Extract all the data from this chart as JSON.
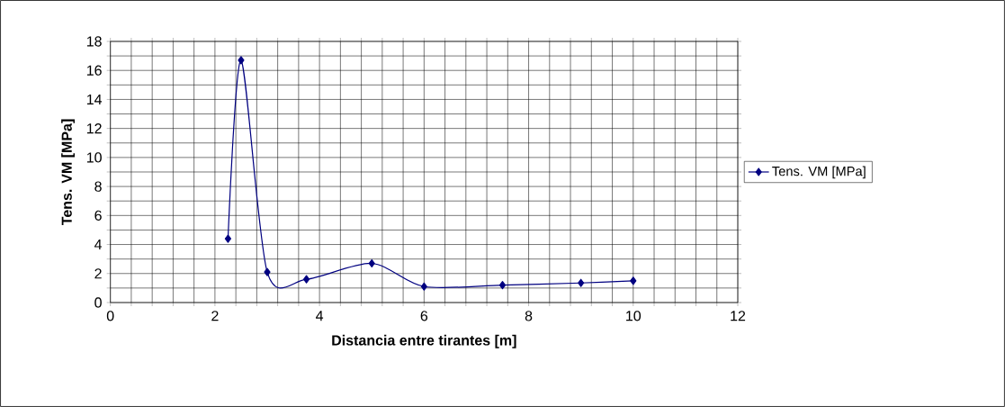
{
  "chart_data": {
    "type": "line",
    "xlabel": "Distancia entre tirantes [m]",
    "ylabel": "Tens. VM [MPa]",
    "x": [
      2.25,
      2.5,
      3,
      3.75,
      5,
      6,
      7.5,
      9,
      10
    ],
    "series": [
      {
        "name": "Tens. VM [MPa]",
        "color": "#000080",
        "values": [
          4.4,
          16.7,
          2.1,
          1.6,
          2.7,
          1.1,
          1.2,
          1.35,
          1.5
        ]
      }
    ],
    "xlim": [
      0,
      12
    ],
    "xticks": [
      0,
      {
        "value": 0.4,
        "label": null
      },
      {
        "value": 0.8,
        "label": null
      },
      {
        "value": 1.2,
        "label": null
      },
      {
        "value": 1.6,
        "label": null
      },
      2,
      {
        "value": 2.4,
        "label": null
      },
      {
        "value": 2.8,
        "label": null
      },
      {
        "value": 3.2,
        "label": null
      },
      {
        "value": 3.6,
        "label": null
      },
      4,
      {
        "value": 4.4,
        "label": null
      },
      {
        "value": 4.8,
        "label": null
      },
      {
        "value": 5.2,
        "label": null
      },
      {
        "value": 5.6,
        "label": null
      },
      6,
      {
        "value": 6.4,
        "label": null
      },
      {
        "value": 6.8,
        "label": null
      },
      {
        "value": 7.2,
        "label": null
      },
      {
        "value": 7.6,
        "label": null
      },
      8,
      {
        "value": 8.4,
        "label": null
      },
      {
        "value": 8.8,
        "label": null
      },
      {
        "value": 9.2,
        "label": null
      },
      {
        "value": 9.6,
        "label": null
      },
      10,
      {
        "value": 10.4,
        "label": null
      },
      {
        "value": 10.8,
        "label": null
      },
      {
        "value": 11.2,
        "label": null
      },
      {
        "value": 11.6,
        "label": null
      },
      12
    ],
    "ylim": [
      0,
      18
    ],
    "yticks": [
      0,
      {
        "value": 1,
        "label": null
      },
      2,
      {
        "value": 3,
        "label": null
      },
      4,
      {
        "value": 5,
        "label": null
      },
      6,
      {
        "value": 7,
        "label": null
      },
      8,
      {
        "value": 9,
        "label": null
      },
      10,
      {
        "value": 11,
        "label": null
      },
      12,
      {
        "value": 13,
        "label": null
      },
      14,
      {
        "value": 15,
        "label": null
      },
      16,
      {
        "value": 17,
        "label": null
      },
      18
    ],
    "grid": true,
    "legend": "right",
    "marker": "diamond",
    "line_style": "solid"
  }
}
